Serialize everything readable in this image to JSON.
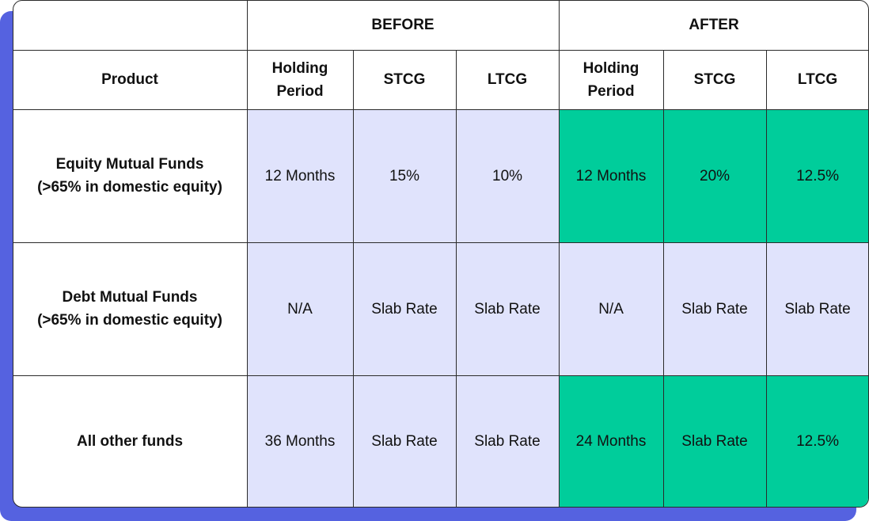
{
  "table": {
    "groups": [
      "BEFORE",
      "AFTER"
    ],
    "product_header": "Product",
    "columns": [
      "Holding Period",
      "STCG",
      "LTCG",
      "Holding Period",
      "STCG",
      "LTCG"
    ],
    "rows": [
      {
        "product": [
          "Equity Mutual Funds",
          "(>65% in domestic equity)"
        ],
        "cells": [
          "12 Months",
          "15%",
          "10%",
          "12 Months",
          "20%",
          "12.5%"
        ]
      },
      {
        "product": [
          "Debt Mutual Funds",
          "(>65% in domestic equity)"
        ],
        "cells": [
          "N/A",
          "Slab Rate",
          "Slab Rate",
          "N/A",
          "Slab Rate",
          "Slab Rate"
        ]
      },
      {
        "product": [
          "All other funds"
        ],
        "cells": [
          "36 Months",
          "Slab Rate",
          "Slab Rate",
          "24 Months",
          "Slab Rate",
          "12.5%"
        ]
      }
    ]
  }
}
